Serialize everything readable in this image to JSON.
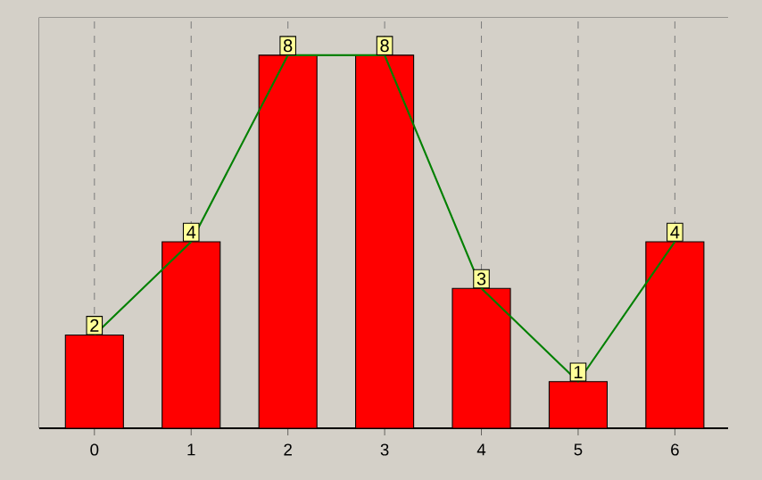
{
  "chart_data": {
    "type": "bar",
    "categories": [
      "0",
      "1",
      "2",
      "3",
      "4",
      "5",
      "6"
    ],
    "series": [
      {
        "color": "#ff0000",
        "values": [
          2,
          4,
          8,
          8,
          3,
          1,
          4
        ],
        "value_labels": [
          "2",
          "4",
          "8",
          "8",
          "3",
          "1",
          "4"
        ]
      },
      {
        "type": "line",
        "color": "#008000",
        "values": [
          2,
          4,
          8,
          8,
          3,
          1,
          4
        ]
      }
    ],
    "ylim": [
      0,
      8.8
    ],
    "grid": "x",
    "marker": "none",
    "line_style": "solid",
    "tick_labels": "x"
  }
}
